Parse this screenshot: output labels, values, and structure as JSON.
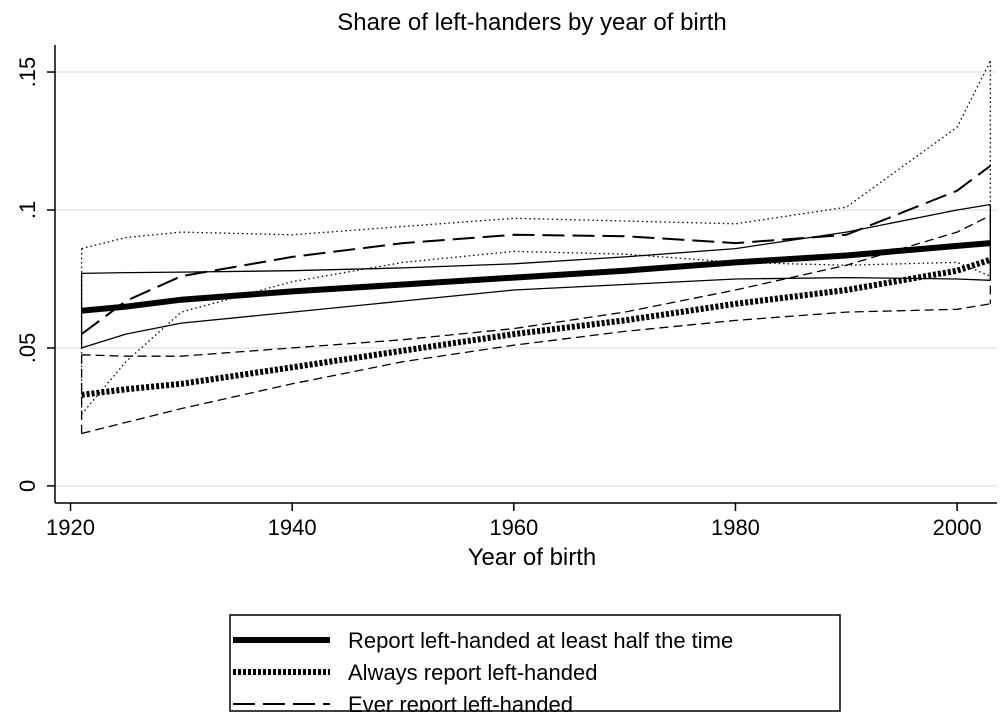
{
  "chart_data": {
    "type": "line",
    "title": "Share of left-handers by year of birth",
    "xlabel": "Year of birth",
    "x": [
      1921,
      1925,
      1930,
      1940,
      1950,
      1960,
      1970,
      1980,
      1990,
      2000,
      2003
    ],
    "series": [
      {
        "name": "Report left-handed at least half the time",
        "color": "#000000",
        "width": 6,
        "dash": "solid",
        "values": [
          0.0635,
          0.065,
          0.0675,
          0.0705,
          0.073,
          0.0755,
          0.078,
          0.081,
          0.0835,
          0.087,
          0.088
        ]
      },
      {
        "name": "Always report left-handed",
        "color": "#000000",
        "width": 6,
        "dash": "dotted",
        "values": [
          0.033,
          0.035,
          0.037,
          0.043,
          0.049,
          0.055,
          0.06,
          0.066,
          0.071,
          0.078,
          0.082
        ]
      },
      {
        "name": "Ever report left-handed",
        "color": "#000000",
        "width": 2,
        "dash": "longdash",
        "values": [
          0.055,
          0.067,
          0.076,
          0.083,
          0.088,
          0.091,
          0.0905,
          0.088,
          0.091,
          0.107,
          0.116
        ]
      }
    ],
    "bands": [
      {
        "color": "#000000",
        "dash": "solid",
        "upper": [
          0.077,
          0.0773,
          0.0775,
          0.078,
          0.079,
          0.0805,
          0.083,
          0.086,
          0.092,
          0.1,
          0.102
        ],
        "lower": [
          0.05,
          0.055,
          0.059,
          0.063,
          0.067,
          0.071,
          0.073,
          0.075,
          0.0755,
          0.075,
          0.0745
        ]
      },
      {
        "color": "#000000",
        "dash": "shortdash",
        "upper": [
          0.0475,
          0.047,
          0.047,
          0.05,
          0.053,
          0.057,
          0.063,
          0.071,
          0.08,
          0.092,
          0.098
        ],
        "lower": [
          0.019,
          0.023,
          0.028,
          0.037,
          0.045,
          0.051,
          0.056,
          0.06,
          0.063,
          0.064,
          0.066
        ]
      },
      {
        "color": "#000000",
        "dash": "dot",
        "upper": [
          0.086,
          0.09,
          0.092,
          0.091,
          0.094,
          0.097,
          0.096,
          0.095,
          0.101,
          0.13,
          0.154
        ],
        "lower": [
          0.026,
          0.045,
          0.063,
          0.074,
          0.081,
          0.085,
          0.084,
          0.081,
          0.08,
          0.081,
          0.076
        ]
      }
    ],
    "xlim": [
      1918.6,
      2003.6
    ],
    "xticks": [
      1920,
      1940,
      1960,
      1980,
      2000
    ],
    "ylim": [
      -0.0062,
      0.1598
    ],
    "yticks": [
      0,
      {
        "value": 0.05,
        "label": ".05"
      },
      {
        "value": 0.1,
        "label": ".1"
      },
      {
        "value": 0.15,
        "label": ".15"
      }
    ],
    "grid": true,
    "legend": "bottom"
  }
}
